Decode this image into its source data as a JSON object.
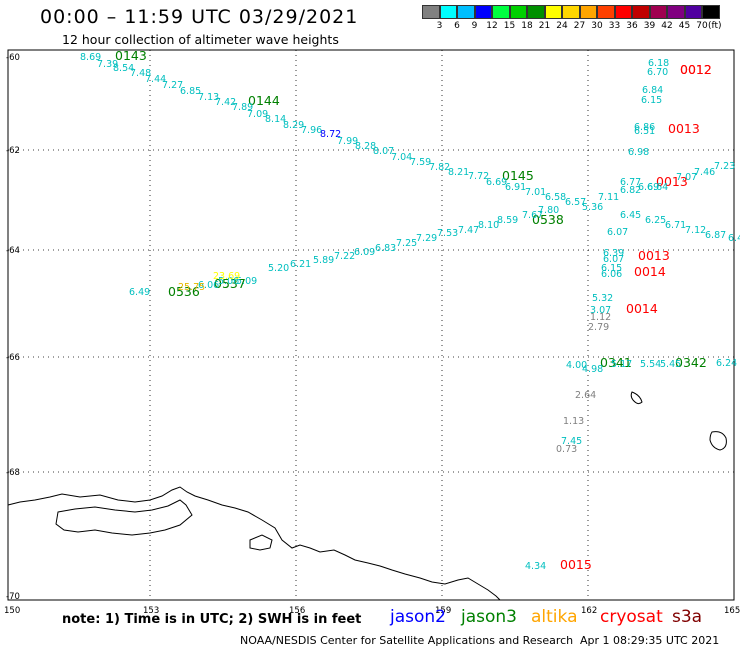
{
  "title": "00:00 – 11:59 UTC 03/29/2021",
  "subtitle": "12 hour collection of altimeter wave heights",
  "scale": {
    "colors": [
      "#808080",
      "#00ffff",
      "#00bfff",
      "#0000ff",
      "#00ff40",
      "#00d000",
      "#009000",
      "#ffff00",
      "#ffd700",
      "#ffa500",
      "#ff4000",
      "#ff0000",
      "#c00000",
      "#a00050",
      "#800080",
      "#5000a0",
      "#000000"
    ],
    "labels": [
      "3",
      "6",
      "9",
      "12",
      "15",
      "18",
      "21",
      "24",
      "27",
      "30",
      "33",
      "36",
      "39",
      "42",
      "45",
      "70",
      "(ft)"
    ]
  },
  "axes": {
    "lon_labels": [
      "150",
      "153",
      "156",
      "159",
      "162",
      "165"
    ],
    "lat_labels": [
      "-60",
      "-62",
      "-64",
      "-66",
      "-68",
      "-70"
    ]
  },
  "passes": [
    {
      "label": "0143",
      "color": "#008000"
    },
    {
      "label": "0144",
      "color": "#008000"
    },
    {
      "label": "0145",
      "color": "#008000"
    },
    {
      "label": "0536",
      "color": "#008000"
    },
    {
      "label": "0537",
      "color": "#008000"
    },
    {
      "label": "0538",
      "color": "#008000"
    },
    {
      "label": "0012",
      "color": "#ff0000"
    },
    {
      "label": "0012",
      "color": "#ff0000"
    },
    {
      "label": "0013",
      "color": "#ff0000"
    },
    {
      "label": "0013",
      "color": "#ff0000"
    },
    {
      "label": "0013",
      "color": "#ff0000"
    },
    {
      "label": "0014",
      "color": "#ff0000"
    },
    {
      "label": "0014",
      "color": "#ff0000"
    },
    {
      "label": "0015",
      "color": "#ff0000"
    },
    {
      "label": "0341",
      "color": "#008000"
    },
    {
      "label": "0342",
      "color": "#008000"
    }
  ],
  "readings": [
    {
      "v": "8.69",
      "c": "#00bfbf"
    },
    {
      "v": "7.39",
      "c": "#00bfbf"
    },
    {
      "v": "8.54",
      "c": "#00bfbf"
    },
    {
      "v": "7.48",
      "c": "#00bfbf"
    },
    {
      "v": "7.44",
      "c": "#00bfbf"
    },
    {
      "v": "7.27",
      "c": "#00bfbf"
    },
    {
      "v": "6.85",
      "c": "#00bfbf"
    },
    {
      "v": "7.13",
      "c": "#00bfbf"
    },
    {
      "v": "7.42",
      "c": "#00bfbf"
    },
    {
      "v": "7.89",
      "c": "#00bfbf"
    },
    {
      "v": "7.09",
      "c": "#00bfbf"
    },
    {
      "v": "8.14",
      "c": "#00bfbf"
    },
    {
      "v": "8.29",
      "c": "#00bfbf"
    },
    {
      "v": "7.96",
      "c": "#00bfbf"
    },
    {
      "v": "8.72",
      "c": "#0000ff"
    },
    {
      "v": "7.99",
      "c": "#00bfbf"
    },
    {
      "v": "8.28",
      "c": "#00bfbf"
    },
    {
      "v": "8.07",
      "c": "#00bfbf"
    },
    {
      "v": "7.04",
      "c": "#00bfbf"
    },
    {
      "v": "7.59",
      "c": "#00bfbf"
    },
    {
      "v": "7.82",
      "c": "#00bfbf"
    },
    {
      "v": "8.21",
      "c": "#00bfbf"
    },
    {
      "v": "7.72",
      "c": "#00bfbf"
    },
    {
      "v": "6.69",
      "c": "#00bfbf"
    },
    {
      "v": "6.91",
      "c": "#00bfbf"
    },
    {
      "v": "7.01",
      "c": "#00bfbf"
    },
    {
      "v": "6.58",
      "c": "#00bfbf"
    },
    {
      "v": "6.57",
      "c": "#00bfbf"
    },
    {
      "v": "5.36",
      "c": "#00bfbf"
    },
    {
      "v": "7.11",
      "c": "#00bfbf"
    },
    {
      "v": "6.18",
      "c": "#00bfbf"
    },
    {
      "v": "6.70",
      "c": "#00bfbf"
    },
    {
      "v": "6.84",
      "c": "#00bfbf"
    },
    {
      "v": "6.15",
      "c": "#00bfbf"
    },
    {
      "v": "6.86",
      "c": "#00bfbf"
    },
    {
      "v": "6.51",
      "c": "#00bfbf"
    },
    {
      "v": "6.98",
      "c": "#00bfbf"
    },
    {
      "v": "6.77",
      "c": "#00bfbf"
    },
    {
      "v": "6.82",
      "c": "#00bfbf"
    },
    {
      "v": "6.69",
      "c": "#00bfbf"
    },
    {
      "v": "6.64",
      "c": "#00bfbf"
    },
    {
      "v": "7.07",
      "c": "#00bfbf"
    },
    {
      "v": "7.46",
      "c": "#00bfbf"
    },
    {
      "v": "7.23",
      "c": "#00bfbf"
    },
    {
      "v": "6.45",
      "c": "#00bfbf"
    },
    {
      "v": "6.25",
      "c": "#00bfbf"
    },
    {
      "v": "6.71",
      "c": "#00bfbf"
    },
    {
      "v": "7.12",
      "c": "#00bfbf"
    },
    {
      "v": "6.87",
      "c": "#00bfbf"
    },
    {
      "v": "6.4",
      "c": "#00bfbf"
    },
    {
      "v": "6.07",
      "c": "#00bfbf"
    },
    {
      "v": "7.67",
      "c": "#00bfbf"
    },
    {
      "v": "7.80",
      "c": "#00bfbf"
    },
    {
      "v": "8.59",
      "c": "#00bfbf"
    },
    {
      "v": "8.10",
      "c": "#00bfbf"
    },
    {
      "v": "7.47",
      "c": "#00bfbf"
    },
    {
      "v": "7.53",
      "c": "#00bfbf"
    },
    {
      "v": "7.29",
      "c": "#00bfbf"
    },
    {
      "v": "7.25",
      "c": "#00bfbf"
    },
    {
      "v": "6.83",
      "c": "#00bfbf"
    },
    {
      "v": "6.09",
      "c": "#00bfbf"
    },
    {
      "v": "7.22",
      "c": "#00bfbf"
    },
    {
      "v": "5.89",
      "c": "#00bfbf"
    },
    {
      "v": "6.21",
      "c": "#00bfbf"
    },
    {
      "v": "5.20",
      "c": "#00bfbf"
    },
    {
      "v": "5.09",
      "c": "#00bfbf"
    },
    {
      "v": "5.06",
      "c": "#00bfbf"
    },
    {
      "v": "6.06",
      "c": "#00bfbf"
    },
    {
      "v": "25.75",
      "c": "#e6b800"
    },
    {
      "v": "23.69",
      "c": "#ffff00"
    },
    {
      "v": "6.49",
      "c": "#00bfbf"
    },
    {
      "v": "6.39",
      "c": "#00bfbf"
    },
    {
      "v": "6.07",
      "c": "#00bfbf"
    },
    {
      "v": "6.15",
      "c": "#00bfbf"
    },
    {
      "v": "6.06",
      "c": "#00bfbf"
    },
    {
      "v": "5.32",
      "c": "#00bfbf"
    },
    {
      "v": "3.07",
      "c": "#00bfbf"
    },
    {
      "v": "1.12",
      "c": "#808080"
    },
    {
      "v": "2.79",
      "c": "#808080"
    },
    {
      "v": "4.00",
      "c": "#00bfbf"
    },
    {
      "v": "4.98",
      "c": "#00bfbf"
    },
    {
      "v": "5.17",
      "c": "#00bfbf"
    },
    {
      "v": "5.54",
      "c": "#00bfbf"
    },
    {
      "v": "5.45",
      "c": "#00bfbf"
    },
    {
      "v": "6.24",
      "c": "#00bfbf"
    },
    {
      "v": "2.64",
      "c": "#808080"
    },
    {
      "v": "1.13",
      "c": "#808080"
    },
    {
      "v": "7.45",
      "c": "#00bfbf"
    },
    {
      "v": "0.73",
      "c": "#808080"
    },
    {
      "v": "4.34",
      "c": "#00bfbf"
    }
  ],
  "note": "note:  1) Time is in UTC;  2) SWH is in feet",
  "missions": [
    {
      "name": "jason2",
      "color": "#0000ff"
    },
    {
      "name": "jason3",
      "color": "#008000"
    },
    {
      "name": "altika",
      "color": "#ffa500"
    },
    {
      "name": "cryosat",
      "color": "#ff0000"
    },
    {
      "name": "s3a",
      "color": "#800000"
    }
  ],
  "credit": "NOAA/NESDIS Center for Satellite Applications and Research",
  "timestamp": "Apr  1 08:29:35 UTC 2021"
}
